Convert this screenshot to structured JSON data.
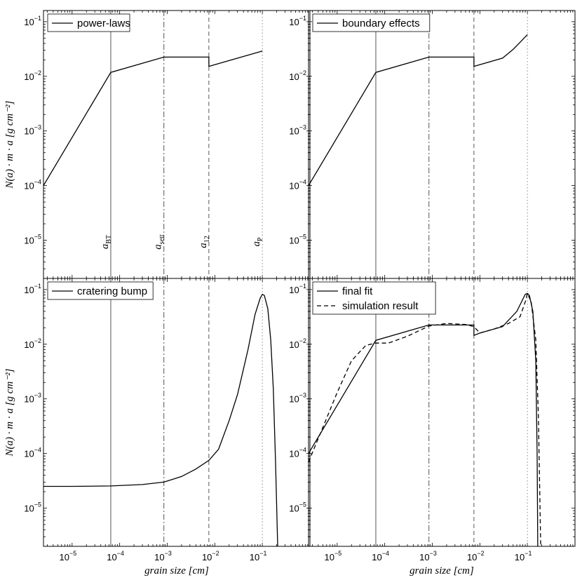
{
  "chart_data": {
    "type": "line",
    "xscale": "log",
    "yscale": "log",
    "xlim": [
      2.5e-06,
      1.0
    ],
    "ylim": [
      2e-06,
      0.16
    ],
    "x_ticks": [
      {
        "value": 1e-05,
        "base": "10",
        "exp": "−5"
      },
      {
        "value": 0.0001,
        "base": "10",
        "exp": "−4"
      },
      {
        "value": 0.001,
        "base": "10",
        "exp": "−3"
      },
      {
        "value": 0.01,
        "base": "10",
        "exp": "−2"
      },
      {
        "value": 0.1,
        "base": "10",
        "exp": "−1"
      }
    ],
    "y_ticks": [
      {
        "value": 1e-05,
        "base": "10",
        "exp": "−5"
      },
      {
        "value": 0.0001,
        "base": "10",
        "exp": "−4"
      },
      {
        "value": 0.001,
        "base": "10",
        "exp": "−3"
      },
      {
        "value": 0.01,
        "base": "10",
        "exp": "−2"
      },
      {
        "value": 0.1,
        "base": "10",
        "exp": "−1"
      }
    ],
    "xlabel": "grain size [cm]",
    "ylabel": "N(a) · m · a [g cm⁻²]",
    "vertical_lines": [
      {
        "x": 6.5e-05,
        "style": "solid",
        "base": "a",
        "sub": "BT"
      },
      {
        "x": 0.00085,
        "style": "dashdot",
        "base": "a",
        "sub": "sett"
      },
      {
        "x": 0.0075,
        "style": "dashed",
        "base": "a",
        "sub": "12"
      },
      {
        "x": 0.1,
        "style": "dotted",
        "base": "a",
        "sub": "P"
      }
    ],
    "panels": [
      {
        "id": "top-left",
        "show_ylabel": true,
        "show_xlabel": false,
        "show_vlabels": true,
        "series": [
          {
            "name": "power-laws",
            "style": "solid",
            "x": [
              2.5e-06,
              6.5e-05,
              0.00085,
              0.0075,
              0.0075,
              0.1
            ],
            "y": [
              0.0001,
              0.0118,
              0.0225,
              0.0225,
              0.0152,
              0.029
            ]
          }
        ]
      },
      {
        "id": "top-right",
        "show_ylabel": false,
        "show_xlabel": false,
        "show_vlabels": false,
        "series": [
          {
            "name": "boundary effects",
            "style": "solid",
            "x": [
              2.5e-06,
              6.5e-05,
              0.00085,
              0.0075,
              0.0075,
              0.03,
              0.05,
              0.07,
              0.1
            ],
            "y": [
              0.0001,
              0.0118,
              0.0225,
              0.0225,
              0.0152,
              0.0215,
              0.031,
              0.042,
              0.058
            ]
          }
        ]
      },
      {
        "id": "bottom-left",
        "show_ylabel": true,
        "show_xlabel": true,
        "show_vlabels": false,
        "series": [
          {
            "name": "cratering bump",
            "style": "solid",
            "x": [
              2.5e-06,
              1e-05,
              6.5e-05,
              0.0003,
              0.00085,
              0.002,
              0.004,
              0.0075,
              0.012,
              0.02,
              0.03,
              0.05,
              0.07,
              0.09,
              0.1,
              0.11,
              0.13,
              0.15,
              0.17,
              0.19,
              0.21
            ],
            "y": [
              2.5e-05,
              2.5e-05,
              2.55e-05,
              2.7e-05,
              3e-05,
              3.8e-05,
              5.2e-05,
              7.5e-05,
              0.00012,
              0.0004,
              0.0012,
              0.008,
              0.035,
              0.07,
              0.082,
              0.078,
              0.045,
              0.012,
              0.0015,
              6e-05,
              2e-06
            ]
          }
        ]
      },
      {
        "id": "bottom-right",
        "show_ylabel": false,
        "show_xlabel": true,
        "show_vlabels": false,
        "series": [
          {
            "name": "final fit",
            "style": "solid",
            "x": [
              2.5e-06,
              6.5e-05,
              0.00085,
              0.0075,
              0.0075,
              0.01,
              0.03,
              0.06,
              0.09,
              0.1,
              0.11,
              0.13,
              0.15,
              0.16,
              0.165
            ],
            "y": [
              0.0001,
              0.0118,
              0.0225,
              0.0225,
              0.0145,
              0.016,
              0.021,
              0.04,
              0.082,
              0.085,
              0.078,
              0.04,
              0.005,
              0.0001,
              2e-06
            ]
          },
          {
            "name": "simulation result",
            "style": "dashed",
            "x": [
              2.5e-06,
              5e-06,
              1e-05,
              2e-05,
              4e-05,
              6.5e-05,
              0.00012,
              0.0003,
              0.00085,
              0.002,
              0.005,
              0.0075,
              0.01,
              0.02,
              0.04,
              0.07,
              0.09,
              0.1,
              0.12,
              0.15,
              0.17,
              0.19
            ],
            "y": [
              7e-05,
              0.0003,
              0.0013,
              0.005,
              0.0095,
              0.0105,
              0.0105,
              0.014,
              0.0215,
              0.024,
              0.023,
              0.021,
              0.016,
              0.019,
              0.024,
              0.032,
              0.06,
              0.085,
              0.06,
              0.012,
              0.0005,
              2e-06
            ]
          }
        ]
      }
    ]
  }
}
